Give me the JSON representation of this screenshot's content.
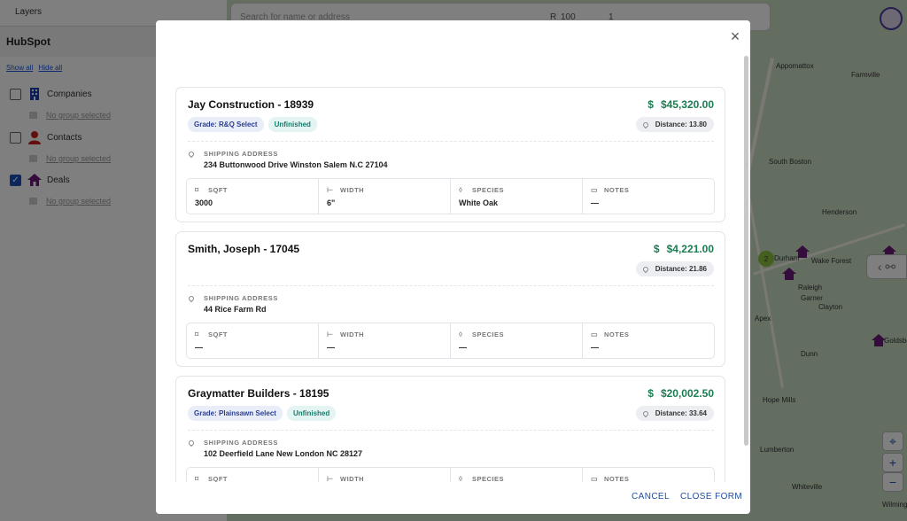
{
  "sidebar": {
    "layers_title": "Layers",
    "group_title": "HubSpot",
    "show_all": "Show all",
    "hide_all": "Hide all",
    "layers": [
      {
        "label": "Companies",
        "checked": false,
        "icon": "building-icon",
        "color": "#1a3fb0",
        "group_text": "No group selected"
      },
      {
        "label": "Contacts",
        "checked": false,
        "icon": "person-icon",
        "color": "#c81e1e",
        "group_text": "No group selected"
      },
      {
        "label": "Deals",
        "checked": true,
        "icon": "house-icon",
        "color": "#6b1a7a",
        "group_text": "No group selected"
      }
    ]
  },
  "map": {
    "search_placeholder": "Search for name or address",
    "radius_label": "R",
    "radius_value": "100",
    "count_value": "1",
    "cluster_count": "2",
    "places": [
      "Appomattox",
      "Farmville",
      "South Boston",
      "Henderson",
      "Wake Forest",
      "Durham",
      "Raleigh",
      "Garner",
      "Clayton",
      "Apex",
      "Dunn",
      "Hope Mills",
      "Lumberton",
      "Whiteville",
      "Goldsboro",
      "Wilmington"
    ]
  },
  "modal": {
    "close_icon": "close-icon",
    "cancel_label": "CANCEL",
    "close_form_label": "CLOSE FORM",
    "field_labels": {
      "sqft": "SQFT",
      "width": "WIDTH",
      "species": "SPECIES",
      "notes": "NOTES"
    },
    "address_label": "SHIPPING ADDRESS",
    "distance_prefix": "Distance:",
    "deals": [
      {
        "title": "Jay Construction - 18939",
        "price": "$45,320.00",
        "grade": "Grade: R&Q Select",
        "status": "Unfinished",
        "distance": "Distance: 13.80",
        "address": "234 Buttonwood Drive Winston Salem N.C 27104",
        "sqft": "3000",
        "width": "6\"",
        "species": "White Oak",
        "notes": "—"
      },
      {
        "title": "Smith, Joseph - 17045",
        "price": "$4,221.00",
        "grade": "",
        "status": "",
        "distance": "Distance: 21.86",
        "address": "44 Rice Farm Rd",
        "sqft": "—",
        "width": "—",
        "species": "—",
        "notes": "—"
      },
      {
        "title": "Graymatter Builders - 18195",
        "price": "$20,002.50",
        "grade": "Grade: Plainsawn Select",
        "status": "Unfinished",
        "distance": "Distance: 33.64",
        "address": "102 Deerfield Lane New London NC 28127",
        "sqft": "",
        "width": "",
        "species": "",
        "notes": ""
      }
    ]
  },
  "colors": {
    "price_green": "#1c7d52",
    "accent_blue": "#1e4e9c",
    "deal_purple": "#6b1a7a"
  }
}
